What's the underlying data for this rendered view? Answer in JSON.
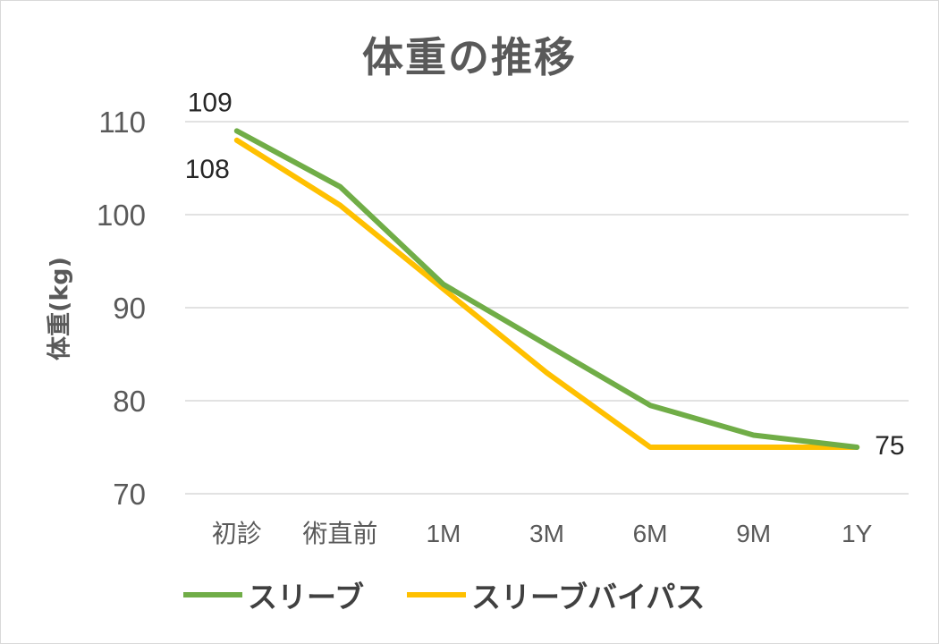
{
  "chart_data": {
    "type": "line",
    "title": "体重の推移",
    "xlabel": "",
    "ylabel": "体重(kg)",
    "categories": [
      "初診",
      "術直前",
      "1M",
      "3M",
      "6M",
      "9M",
      "1Y"
    ],
    "ylim": [
      70,
      110
    ],
    "yticks": [
      "110",
      "100",
      "90",
      "80",
      "70"
    ],
    "grid": true,
    "legend_position": "bottom",
    "series": [
      {
        "name": "スリーブ",
        "color": "#70AD47",
        "values": [
          109,
          103,
          92.5,
          86,
          79.5,
          76.3,
          75
        ]
      },
      {
        "name": "スリーブバイパス",
        "color": "#FFC000",
        "values": [
          108,
          101,
          92,
          83,
          75,
          75,
          75
        ]
      }
    ],
    "annotations": [
      {
        "text": "109",
        "series": 0,
        "index": 0
      },
      {
        "text": "108",
        "series": 1,
        "index": 0
      },
      {
        "text": "75",
        "series": 0,
        "index": 6
      }
    ]
  }
}
